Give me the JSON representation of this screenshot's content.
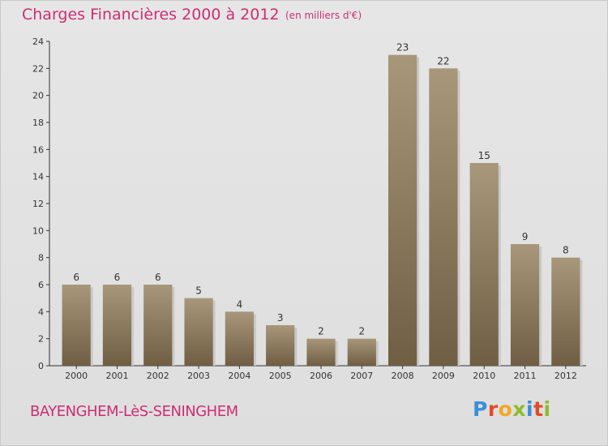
{
  "header": {
    "title": "Charges Financières 2000 à 2012",
    "subtitle": "(en milliers d'€)"
  },
  "footer": {
    "commune": "BAYENGHEM-LèS-SENINGHEM",
    "logo_letters": [
      "P",
      "r",
      "o",
      "x",
      "i",
      "t",
      "i"
    ],
    "logo_colors": [
      "#3a8fd8",
      "#e04b2a",
      "#f5a623",
      "#8bbd2b",
      "#3a8fd8",
      "#e04b2a",
      "#8bbd2b"
    ]
  },
  "chart_data": {
    "type": "bar",
    "categories": [
      "2000",
      "2001",
      "2002",
      "2003",
      "2004",
      "2005",
      "2006",
      "2007",
      "2008",
      "2009",
      "2010",
      "2011",
      "2012"
    ],
    "values": [
      6,
      6,
      6,
      5,
      4,
      3,
      2,
      2,
      23,
      22,
      15,
      9,
      8
    ],
    "data_labels": [
      "6",
      "6",
      "6",
      "5",
      "4",
      "3",
      "2",
      "2",
      "23",
      "22",
      "15",
      "9",
      "8"
    ],
    "yticks": [
      "0",
      "2",
      "4",
      "6",
      "8",
      "10",
      "12",
      "14",
      "16",
      "18",
      "20",
      "22",
      "24"
    ],
    "ylim": [
      0,
      24
    ],
    "grid": false,
    "bar_color": "#8c7a5e"
  }
}
